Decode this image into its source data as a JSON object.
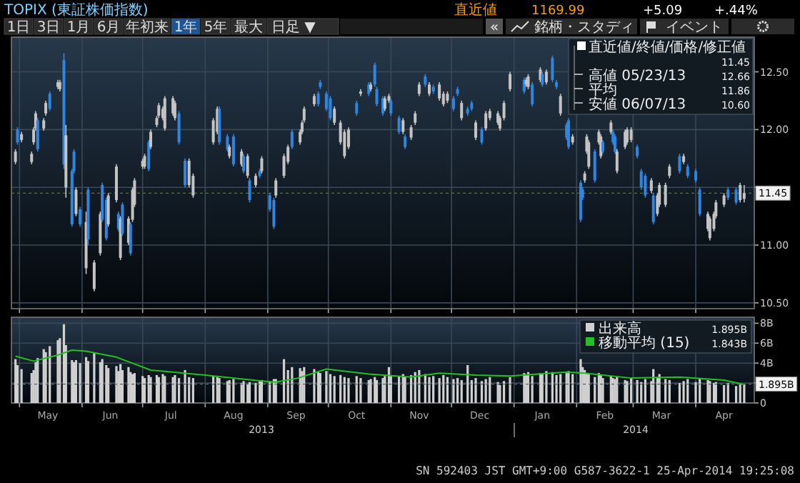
{
  "chart_data": [
    {
      "type": "other",
      "title": "TOPIX (東証株価指数)",
      "annotations": [
        "直近値",
        "1169.99",
        "+5.09",
        "+.44%",
        "1日",
        "3日",
        "1月",
        "6月",
        "年初来",
        "1年",
        "5年",
        "最大",
        "日足 ▼",
        "«",
        "銘柄・スタディ",
        "イベント"
      ]
    },
    {
      "type": "candlestick",
      "x": [
        "2013-04-29",
        "2013-04-30",
        "2013-05-02",
        "2013-05-07",
        "2013-05-08",
        "2013-05-09",
        "2013-05-10",
        "2013-05-13",
        "2013-05-14",
        "2013-05-16",
        "2013-05-20",
        "2013-05-21",
        "2013-05-23",
        "2013-05-24",
        "2013-05-27",
        "2013-05-28",
        "2013-05-29",
        "2013-05-31",
        "2013-06-03",
        "2013-06-04",
        "2013-06-07",
        "2013-06-10",
        "2013-06-11",
        "2013-06-13",
        "2013-06-14",
        "2013-06-18",
        "2013-06-19",
        "2013-06-20",
        "2013-06-21",
        "2013-06-24",
        "2013-06-25",
        "2013-06-26",
        "2013-06-27",
        "2013-07-01",
        "2013-07-02",
        "2013-07-04",
        "2013-07-05",
        "2013-07-08",
        "2013-07-09",
        "2013-07-11",
        "2013-07-12",
        "2013-07-16",
        "2013-07-17",
        "2013-07-19",
        "2013-07-22",
        "2013-07-24",
        "2013-07-26",
        "2013-08-05",
        "2013-08-07",
        "2013-08-08",
        "2013-08-12",
        "2013-08-13",
        "2013-08-15",
        "2013-08-19",
        "2013-08-20",
        "2013-08-22",
        "2013-08-23",
        "2013-08-26",
        "2013-08-28",
        "2013-08-29",
        "2013-09-02",
        "2013-09-04",
        "2013-09-05",
        "2013-09-09",
        "2013-09-11",
        "2013-09-13",
        "2013-09-17",
        "2013-09-18",
        "2013-09-19",
        "2013-09-24",
        "2013-09-26",
        "2013-09-27",
        "2013-09-30",
        "2013-10-02",
        "2013-10-04",
        "2013-10-07",
        "2013-10-09",
        "2013-10-11",
        "2013-10-15",
        "2013-10-17",
        "2013-10-21",
        "2013-10-22",
        "2013-10-24",
        "2013-10-25",
        "2013-10-28",
        "2013-10-29",
        "2013-10-31",
        "2013-11-01",
        "2013-11-05",
        "2013-11-07",
        "2013-11-08",
        "2013-11-11",
        "2013-11-13",
        "2013-11-15",
        "2013-11-18",
        "2013-11-20",
        "2013-11-22",
        "2013-11-25",
        "2013-11-27",
        "2013-11-29",
        "2013-12-02",
        "2013-12-04",
        "2013-12-06",
        "2013-12-09",
        "2013-12-11",
        "2013-12-13",
        "2013-12-16",
        "2013-12-18",
        "2013-12-20",
        "2013-12-24",
        "2013-12-25",
        "2013-12-27",
        "2013-12-30",
        "2014-01-06",
        "2014-01-07",
        "2014-01-08",
        "2014-01-10",
        "2014-01-14",
        "2014-01-15",
        "2014-01-17",
        "2014-01-20",
        "2014-01-22",
        "2014-01-24",
        "2014-01-27",
        "2014-01-28",
        "2014-01-30",
        "2014-02-03",
        "2014-02-04",
        "2014-02-05",
        "2014-02-06",
        "2014-02-07",
        "2014-02-10",
        "2014-02-12",
        "2014-02-13",
        "2014-02-14",
        "2014-02-18",
        "2014-02-19",
        "2014-02-20",
        "2014-02-21",
        "2014-02-25",
        "2014-02-26",
        "2014-02-28",
        "2014-03-03",
        "2014-03-05",
        "2014-03-07",
        "2014-03-10",
        "2014-03-11",
        "2014-03-13",
        "2014-03-14",
        "2014-03-17",
        "2014-03-19",
        "2014-03-24",
        "2014-03-26",
        "2014-03-28",
        "2014-04-01",
        "2014-04-03",
        "2014-04-07",
        "2014-04-08",
        "2014-04-10",
        "2014-04-11",
        "2014-04-15",
        "2014-04-17",
        "2014-04-21",
        "2014-04-23",
        "2014-04-25"
      ],
      "ohlc": [
        [
          11.72,
          11.83,
          11.7,
          11.81
        ],
        [
          12.0,
          12.02,
          11.87,
          11.89
        ],
        [
          11.91,
          11.98,
          11.89,
          11.96
        ],
        [
          11.72,
          11.81,
          11.7,
          11.79
        ],
        [
          11.89,
          12.02,
          11.87,
          12.0
        ],
        [
          12.01,
          12.16,
          11.99,
          12.14
        ],
        [
          12.08,
          12.1,
          11.81,
          11.83
        ],
        [
          12.01,
          12.1,
          11.99,
          12.08
        ],
        [
          12.14,
          12.25,
          12.12,
          12.23
        ],
        [
          12.31,
          12.33,
          12.16,
          12.18
        ],
        [
          12.37,
          12.43,
          12.35,
          12.41
        ],
        [
          12.35,
          12.43,
          12.33,
          12.41
        ],
        [
          12.6,
          12.66,
          11.66,
          11.7
        ],
        [
          11.5,
          12.04,
          11.41,
          11.95
        ],
        [
          11.64,
          11.66,
          11.16,
          11.18
        ],
        [
          11.81,
          11.83,
          11.62,
          11.64
        ],
        [
          11.27,
          11.5,
          11.25,
          11.48
        ],
        [
          11.31,
          11.33,
          11.16,
          11.18
        ],
        [
          10.8,
          11.29,
          10.75,
          11.2
        ],
        [
          11.48,
          11.5,
          11.0,
          11.05
        ],
        [
          10.62,
          10.87,
          10.6,
          10.85
        ],
        [
          10.93,
          11.29,
          10.91,
          11.27
        ],
        [
          11.52,
          11.54,
          11.2,
          11.22
        ],
        [
          11.39,
          11.41,
          11.04,
          11.06
        ],
        [
          11.18,
          11.45,
          11.16,
          11.43
        ],
        [
          11.39,
          11.7,
          11.37,
          11.68
        ],
        [
          11.27,
          11.29,
          11.12,
          11.14
        ],
        [
          10.89,
          11.25,
          10.87,
          11.23
        ],
        [
          11.35,
          11.37,
          11.08,
          11.1
        ],
        [
          11.02,
          11.25,
          11.0,
          11.23
        ],
        [
          11.18,
          11.2,
          10.91,
          10.93
        ],
        [
          11.22,
          11.5,
          11.2,
          11.48
        ],
        [
          11.35,
          11.58,
          11.33,
          11.56
        ],
        [
          11.68,
          11.75,
          11.66,
          11.73
        ],
        [
          11.68,
          11.79,
          11.66,
          11.77
        ],
        [
          11.89,
          11.91,
          11.64,
          11.66
        ],
        [
          11.85,
          12.0,
          11.83,
          11.98
        ],
        [
          12.04,
          12.12,
          12.02,
          12.1
        ],
        [
          12.12,
          12.23,
          12.1,
          12.21
        ],
        [
          12.1,
          12.2,
          12.08,
          12.18
        ],
        [
          12.01,
          12.29,
          11.99,
          12.27
        ],
        [
          12.14,
          12.29,
          12.12,
          12.27
        ],
        [
          12.1,
          12.25,
          12.08,
          12.23
        ],
        [
          12.14,
          12.16,
          11.87,
          11.89
        ],
        [
          11.73,
          11.75,
          11.5,
          11.52
        ],
        [
          11.52,
          11.75,
          11.5,
          11.73
        ],
        [
          11.43,
          11.62,
          11.41,
          11.6
        ],
        [
          11.89,
          12.1,
          11.87,
          12.08
        ],
        [
          11.98,
          12.2,
          11.96,
          12.18
        ],
        [
          12.18,
          12.2,
          11.87,
          11.89
        ],
        [
          11.94,
          11.96,
          11.81,
          11.83
        ],
        [
          11.77,
          11.87,
          11.75,
          11.85
        ],
        [
          11.94,
          11.96,
          11.68,
          11.7
        ],
        [
          11.7,
          11.83,
          11.68,
          11.81
        ],
        [
          11.77,
          11.79,
          11.62,
          11.64
        ],
        [
          11.6,
          11.79,
          11.58,
          11.77
        ],
        [
          11.56,
          11.58,
          11.37,
          11.39
        ],
        [
          11.52,
          11.62,
          11.5,
          11.6
        ],
        [
          11.64,
          11.66,
          11.58,
          11.6
        ],
        [
          11.64,
          11.77,
          11.62,
          11.75
        ],
        [
          11.43,
          11.45,
          11.29,
          11.31
        ],
        [
          11.39,
          11.41,
          11.14,
          11.16
        ],
        [
          11.43,
          11.58,
          11.41,
          11.56
        ],
        [
          11.6,
          11.79,
          11.58,
          11.77
        ],
        [
          11.72,
          11.87,
          11.7,
          11.85
        ],
        [
          11.98,
          12.0,
          11.83,
          11.85
        ],
        [
          11.89,
          12.0,
          11.87,
          11.98
        ],
        [
          11.98,
          12.08,
          11.96,
          12.06
        ],
        [
          12.08,
          12.2,
          12.06,
          12.18
        ],
        [
          12.22,
          12.31,
          12.2,
          12.29
        ],
        [
          12.31,
          12.33,
          12.2,
          12.22
        ],
        [
          12.41,
          12.43,
          12.35,
          12.37
        ],
        [
          12.31,
          12.33,
          12.16,
          12.18
        ],
        [
          12.27,
          12.29,
          12.08,
          12.1
        ],
        [
          12.06,
          12.2,
          12.04,
          12.18
        ],
        [
          11.89,
          12.08,
          11.87,
          12.06
        ],
        [
          11.77,
          12.0,
          11.75,
          11.98
        ],
        [
          11.85,
          12.02,
          11.83,
          12.0
        ],
        [
          12.23,
          12.25,
          12.12,
          12.14
        ],
        [
          12.31,
          12.35,
          12.29,
          12.33
        ],
        [
          12.39,
          12.41,
          12.29,
          12.31
        ],
        [
          12.35,
          12.41,
          12.33,
          12.39
        ],
        [
          12.56,
          12.58,
          12.37,
          12.39
        ],
        [
          12.35,
          12.37,
          12.2,
          12.22
        ],
        [
          12.27,
          12.29,
          12.12,
          12.14
        ],
        [
          12.18,
          12.29,
          12.16,
          12.27
        ],
        [
          12.25,
          12.31,
          12.23,
          12.29
        ],
        [
          12.25,
          12.27,
          12.12,
          12.14
        ],
        [
          12.1,
          12.12,
          11.96,
          11.98
        ],
        [
          11.98,
          12.1,
          11.96,
          12.08
        ],
        [
          11.94,
          11.96,
          11.83,
          11.85
        ],
        [
          11.93,
          12.04,
          11.91,
          12.02
        ],
        [
          12.06,
          12.16,
          12.04,
          12.14
        ],
        [
          12.31,
          12.41,
          12.29,
          12.39
        ],
        [
          12.46,
          12.48,
          12.37,
          12.39
        ],
        [
          12.31,
          12.41,
          12.29,
          12.39
        ],
        [
          12.37,
          12.39,
          12.31,
          12.33
        ],
        [
          12.27,
          12.41,
          12.25,
          12.39
        ],
        [
          12.22,
          12.33,
          12.2,
          12.31
        ],
        [
          12.25,
          12.33,
          12.23,
          12.31
        ],
        [
          12.27,
          12.29,
          12.16,
          12.18
        ],
        [
          12.35,
          12.37,
          12.29,
          12.31
        ],
        [
          12.1,
          12.25,
          12.08,
          12.23
        ],
        [
          12.18,
          12.2,
          12.12,
          12.14
        ],
        [
          12.23,
          12.25,
          12.16,
          12.18
        ],
        [
          11.93,
          12.08,
          11.91,
          12.06
        ],
        [
          12.0,
          12.02,
          11.87,
          11.89
        ],
        [
          12.01,
          12.16,
          11.99,
          12.14
        ],
        [
          12.1,
          12.18,
          12.08,
          12.16
        ],
        [
          12.06,
          12.16,
          12.04,
          12.14
        ],
        [
          12.01,
          12.12,
          11.99,
          12.1
        ],
        [
          12.1,
          12.25,
          12.08,
          12.23
        ],
        [
          12.35,
          12.5,
          12.33,
          12.48
        ],
        [
          12.43,
          12.45,
          12.31,
          12.33
        ],
        [
          12.39,
          12.45,
          12.37,
          12.43
        ],
        [
          12.37,
          12.48,
          12.35,
          12.46
        ],
        [
          12.39,
          12.41,
          12.2,
          12.22
        ],
        [
          12.43,
          12.54,
          12.41,
          12.52
        ],
        [
          12.48,
          12.5,
          12.37,
          12.39
        ],
        [
          12.41,
          12.52,
          12.39,
          12.5
        ],
        [
          12.62,
          12.64,
          12.41,
          12.43
        ],
        [
          12.41,
          12.43,
          12.35,
          12.37
        ],
        [
          12.14,
          12.31,
          12.12,
          12.29
        ],
        [
          12.04,
          12.06,
          11.91,
          11.93
        ],
        [
          12.08,
          12.1,
          11.83,
          11.85
        ],
        [
          11.89,
          11.96,
          11.87,
          11.94
        ],
        [
          11.54,
          11.56,
          11.2,
          11.22
        ],
        [
          11.48,
          11.5,
          11.39,
          11.41
        ],
        [
          11.56,
          11.64,
          11.54,
          11.62
        ],
        [
          11.81,
          11.96,
          11.79,
          11.94
        ],
        [
          11.68,
          11.91,
          11.66,
          11.89
        ],
        [
          11.81,
          11.83,
          11.54,
          11.56
        ],
        [
          11.89,
          12.0,
          11.87,
          11.98
        ],
        [
          11.77,
          11.96,
          11.75,
          11.94
        ],
        [
          11.89,
          11.91,
          11.79,
          11.81
        ],
        [
          11.98,
          12.08,
          11.96,
          12.06
        ],
        [
          11.98,
          12.0,
          11.87,
          11.89
        ],
        [
          11.94,
          11.96,
          11.79,
          11.81
        ],
        [
          11.64,
          11.83,
          11.62,
          11.81
        ],
        [
          11.85,
          12.0,
          11.83,
          11.98
        ],
        [
          11.89,
          12.02,
          11.87,
          12.0
        ],
        [
          11.91,
          12.02,
          11.89,
          12.0
        ],
        [
          11.85,
          11.87,
          11.75,
          11.77
        ],
        [
          11.64,
          11.66,
          11.48,
          11.5
        ],
        [
          11.6,
          11.62,
          11.41,
          11.43
        ],
        [
          11.47,
          11.58,
          11.45,
          11.56
        ],
        [
          11.43,
          11.45,
          11.18,
          11.2
        ],
        [
          11.27,
          11.45,
          11.25,
          11.43
        ],
        [
          11.35,
          11.54,
          11.33,
          11.52
        ],
        [
          11.35,
          11.54,
          11.33,
          11.52
        ],
        [
          11.6,
          11.7,
          11.58,
          11.68
        ],
        [
          11.77,
          11.79,
          11.62,
          11.64
        ],
        [
          11.72,
          11.79,
          11.7,
          11.77
        ],
        [
          11.68,
          11.7,
          11.58,
          11.6
        ],
        [
          11.64,
          11.66,
          11.54,
          11.56
        ],
        [
          11.48,
          11.5,
          11.25,
          11.27
        ],
        [
          11.14,
          11.29,
          11.12,
          11.27
        ],
        [
          11.06,
          11.25,
          11.04,
          11.23
        ],
        [
          11.14,
          11.29,
          11.12,
          11.27
        ],
        [
          11.25,
          11.39,
          11.23,
          11.37
        ],
        [
          11.35,
          11.45,
          11.33,
          11.43
        ],
        [
          11.48,
          11.5,
          11.39,
          11.41
        ],
        [
          11.48,
          11.5,
          11.35,
          11.37
        ],
        [
          11.39,
          11.54,
          11.37,
          11.52
        ],
        [
          11.4,
          11.52,
          11.37,
          11.45
        ]
      ],
      "xlim": [
        "2013-04-27",
        "2014-04-30"
      ],
      "xticks": [
        {
          "value": "2013-05-01",
          "label": null
        },
        {
          "value": "2013-06-01",
          "label": null
        },
        {
          "value": "2013-07-01",
          "label": null
        },
        {
          "value": "2013-08-01",
          "label": null
        },
        {
          "value": "2013-09-01",
          "label": null
        },
        {
          "value": "2013-10-01",
          "label": null
        },
        {
          "value": "2013-11-01",
          "label": null
        },
        {
          "value": "2013-12-01",
          "label": null
        },
        {
          "value": "2014-01-01",
          "label": null
        },
        {
          "value": "2014-02-01",
          "label": null
        },
        {
          "value": "2014-03-01",
          "label": null
        },
        {
          "value": "2014-04-01",
          "label": null
        }
      ],
      "ylim": [
        10.45,
        12.8
      ],
      "yticks": [
        {
          "value": 10.5,
          "label": "10.50"
        },
        {
          "value": 11,
          "label": "11.00"
        },
        {
          "value": 11.5,
          "label": null
        },
        {
          "value": 12,
          "label": "12.00"
        },
        {
          "value": 12.5,
          "label": "12.50"
        }
      ],
      "ref_lines": [
        {
          "axis": "y",
          "value": 11.45,
          "label": "11.45"
        }
      ],
      "grid": true,
      "tick_labels": "y",
      "annotations": [
        "直近値/終値/価格/修正値",
        "11.45",
        "高値 05/23/13",
        "12.66",
        "平均",
        "11.86",
        "安値 06/07/13",
        "10.60"
      ]
    },
    {
      "type": "bar",
      "x": [
        "2013-04-29",
        "2013-04-30",
        "2013-05-02",
        "2013-05-07",
        "2013-05-08",
        "2013-05-09",
        "2013-05-10",
        "2013-05-13",
        "2013-05-14",
        "2013-05-16",
        "2013-05-20",
        "2013-05-21",
        "2013-05-23",
        "2013-05-24",
        "2013-05-27",
        "2013-05-28",
        "2013-05-29",
        "2013-05-31",
        "2013-06-03",
        "2013-06-04",
        "2013-06-07",
        "2013-06-10",
        "2013-06-11",
        "2013-06-13",
        "2013-06-14",
        "2013-06-18",
        "2013-06-19",
        "2013-06-20",
        "2013-06-21",
        "2013-06-24",
        "2013-06-25",
        "2013-06-26",
        "2013-06-27",
        "2013-07-01",
        "2013-07-02",
        "2013-07-04",
        "2013-07-05",
        "2013-07-08",
        "2013-07-09",
        "2013-07-11",
        "2013-07-12",
        "2013-07-16",
        "2013-07-17",
        "2013-07-19",
        "2013-07-22",
        "2013-07-24",
        "2013-07-26",
        "2013-08-05",
        "2013-08-07",
        "2013-08-08",
        "2013-08-12",
        "2013-08-13",
        "2013-08-15",
        "2013-08-19",
        "2013-08-20",
        "2013-08-22",
        "2013-08-23",
        "2013-08-26",
        "2013-08-28",
        "2013-08-29",
        "2013-09-02",
        "2013-09-04",
        "2013-09-05",
        "2013-09-09",
        "2013-09-11",
        "2013-09-13",
        "2013-09-17",
        "2013-09-18",
        "2013-09-19",
        "2013-09-24",
        "2013-09-26",
        "2013-09-27",
        "2013-09-30",
        "2013-10-02",
        "2013-10-04",
        "2013-10-07",
        "2013-10-09",
        "2013-10-11",
        "2013-10-15",
        "2013-10-17",
        "2013-10-21",
        "2013-10-22",
        "2013-10-24",
        "2013-10-25",
        "2013-10-28",
        "2013-10-29",
        "2013-10-31",
        "2013-11-01",
        "2013-11-05",
        "2013-11-07",
        "2013-11-08",
        "2013-11-11",
        "2013-11-13",
        "2013-11-15",
        "2013-11-18",
        "2013-11-20",
        "2013-11-22",
        "2013-11-25",
        "2013-11-27",
        "2013-11-29",
        "2013-12-02",
        "2013-12-04",
        "2013-12-06",
        "2013-12-09",
        "2013-12-11",
        "2013-12-13",
        "2013-12-16",
        "2013-12-18",
        "2013-12-20",
        "2013-12-24",
        "2013-12-25",
        "2013-12-27",
        "2013-12-30",
        "2014-01-06",
        "2014-01-07",
        "2014-01-08",
        "2014-01-10",
        "2014-01-14",
        "2014-01-15",
        "2014-01-17",
        "2014-01-20",
        "2014-01-22",
        "2014-01-24",
        "2014-01-27",
        "2014-01-28",
        "2014-01-30",
        "2014-02-03",
        "2014-02-04",
        "2014-02-05",
        "2014-02-06",
        "2014-02-07",
        "2014-02-10",
        "2014-02-12",
        "2014-02-13",
        "2014-02-14",
        "2014-02-18",
        "2014-02-19",
        "2014-02-20",
        "2014-02-21",
        "2014-02-25",
        "2014-02-26",
        "2014-02-28",
        "2014-03-03",
        "2014-03-05",
        "2014-03-07",
        "2014-03-10",
        "2014-03-11",
        "2014-03-13",
        "2014-03-14",
        "2014-03-17",
        "2014-03-19",
        "2014-03-24",
        "2014-03-26",
        "2014-03-28",
        "2014-04-01",
        "2014-04-03",
        "2014-04-07",
        "2014-04-08",
        "2014-04-10",
        "2014-04-11",
        "2014-04-15",
        "2014-04-17",
        "2014-04-21",
        "2014-04-23",
        "2014-04-25"
      ],
      "series": [
        {
          "name": "出来高",
          "color": "#d0d0d0",
          "values": [
            4.4,
            3.8,
            3.4,
            3.0,
            3.3,
            4.1,
            4.5,
            5.4,
            5.1,
            5.7,
            6.3,
            6.5,
            7.9,
            5.8,
            4.3,
            4.1,
            4.3,
            4.0,
            4.6,
            4.2,
            5.0,
            4.1,
            4.4,
            3.8,
            3.5,
            3.7,
            3.2,
            3.9,
            3.3,
            3.6,
            3.1,
            2.9,
            3.0,
            2.7,
            2.5,
            2.8,
            2.6,
            2.8,
            2.6,
            2.9,
            2.7,
            2.6,
            2.8,
            2.5,
            3.3,
            2.6,
            2.5,
            2.7,
            2.6,
            2.5,
            2.2,
            2.3,
            2.4,
            2.0,
            2.2,
            1.9,
            2.1,
            2.0,
            2.2,
            2.3,
            2.1,
            2.4,
            2.4,
            4.4,
            3.3,
            3.6,
            3.5,
            3.2,
            3.6,
            3.4,
            3.1,
            3.0,
            3.2,
            2.9,
            2.7,
            2.8,
            2.6,
            2.5,
            2.7,
            2.5,
            2.3,
            2.4,
            2.6,
            2.3,
            2.5,
            2.7,
            3.6,
            2.8,
            2.7,
            2.9,
            2.6,
            2.8,
            3.1,
            3.3,
            2.9,
            2.6,
            2.7,
            2.5,
            2.8,
            2.6,
            2.4,
            2.5,
            2.3,
            3.8,
            2.3,
            2.5,
            2.2,
            2.4,
            2.6,
            2.1,
            1.8,
            2.2,
            2.6,
            3.0,
            2.8,
            3.1,
            2.7,
            3.0,
            2.9,
            3.2,
            3.1,
            2.8,
            2.9,
            3.0,
            3.2,
            2.9,
            4.4,
            3.6,
            3.3,
            3.0,
            2.9,
            2.6,
            3.0,
            2.8,
            2.5,
            2.7,
            2.5,
            2.4,
            2.6,
            2.3,
            2.2,
            2.5,
            2.3,
            2.1,
            2.4,
            2.2,
            3.4,
            2.6,
            2.9,
            2.4,
            2.3,
            2.0,
            2.2,
            2.4,
            2.1,
            2.5,
            2.3,
            2.2,
            2.0,
            2.1,
            1.8,
            2.0,
            1.7,
            1.9,
            1.895
          ]
        },
        {
          "name": "移動平均 (15)",
          "color": "#22c022",
          "type": "line",
          "x": [
            "2013-04-29",
            "2013-05-08",
            "2013-05-20",
            "2013-05-27",
            "2013-06-03",
            "2013-06-18",
            "2013-07-05",
            "2013-08-01",
            "2013-08-29",
            "2013-09-05",
            "2013-09-16",
            "2013-09-30",
            "2013-10-21",
            "2013-11-11",
            "2013-11-25",
            "2013-12-13",
            "2013-12-30",
            "2014-01-27",
            "2014-02-05",
            "2014-02-28",
            "2014-03-24",
            "2014-04-15",
            "2014-04-25"
          ],
          "values": [
            4.7,
            4.2,
            4.8,
            5.3,
            5.2,
            4.6,
            3.3,
            2.8,
            2.2,
            2.1,
            2.5,
            3.4,
            2.9,
            2.6,
            3.0,
            2.8,
            2.7,
            3.1,
            3.0,
            2.5,
            2.6,
            2.3,
            1.843
          ]
        }
      ],
      "xlim": [
        "2013-04-27",
        "2014-04-30"
      ],
      "xticks": [
        {
          "value": "2013-05-01",
          "label": null
        },
        {
          "value": "2013-06-01",
          "label": null
        },
        {
          "value": "2013-07-01",
          "label": null
        },
        {
          "value": "2013-08-01",
          "label": null
        },
        {
          "value": "2013-09-01",
          "label": null
        },
        {
          "value": "2013-10-01",
          "label": null
        },
        {
          "value": "2013-11-01",
          "label": null
        },
        {
          "value": "2013-12-01",
          "label": null
        },
        {
          "value": "2014-01-01",
          "label": null
        },
        {
          "value": "2014-02-01",
          "label": null
        },
        {
          "value": "2014-03-01",
          "label": null
        },
        {
          "value": "2014-04-01",
          "label": null
        },
        {
          "value": "2013-05-15",
          "label": "May"
        },
        {
          "value": "2013-06-15",
          "label": "Jun"
        },
        {
          "value": "2013-07-15",
          "label": "Jul"
        },
        {
          "value": "2013-08-15",
          "label": "Aug"
        },
        {
          "value": "2013-09-15",
          "label": "Sep"
        },
        {
          "value": "2013-10-15",
          "label": "Oct"
        },
        {
          "value": "2013-11-15",
          "label": "Nov"
        },
        {
          "value": "2013-12-15",
          "label": "Dec"
        },
        {
          "value": "2014-01-15",
          "label": "Jan"
        },
        {
          "value": "2014-02-15",
          "label": "Feb"
        },
        {
          "value": "2014-03-15",
          "label": "Mar"
        },
        {
          "value": "2014-04-15",
          "label": "Apr"
        }
      ],
      "ylim": [
        0,
        8.6
      ],
      "yticks": [
        0,
        {
          "value": 2,
          "label": null
        },
        {
          "value": 4,
          "label": "4B"
        },
        {
          "value": 6,
          "label": "6B"
        },
        {
          "value": 8,
          "label": "8B"
        }
      ],
      "ref_lines": [
        {
          "axis": "y",
          "value": 1.895,
          "label": "1.895B"
        }
      ],
      "grid": true,
      "legend": "top right",
      "annotations": [
        "1.895B",
        "1.843B",
        "2013",
        "2014",
        "SN 592403 JST GMT+9:00 G587-3622-1 25-Apr-2014 19:25:08"
      ]
    }
  ]
}
